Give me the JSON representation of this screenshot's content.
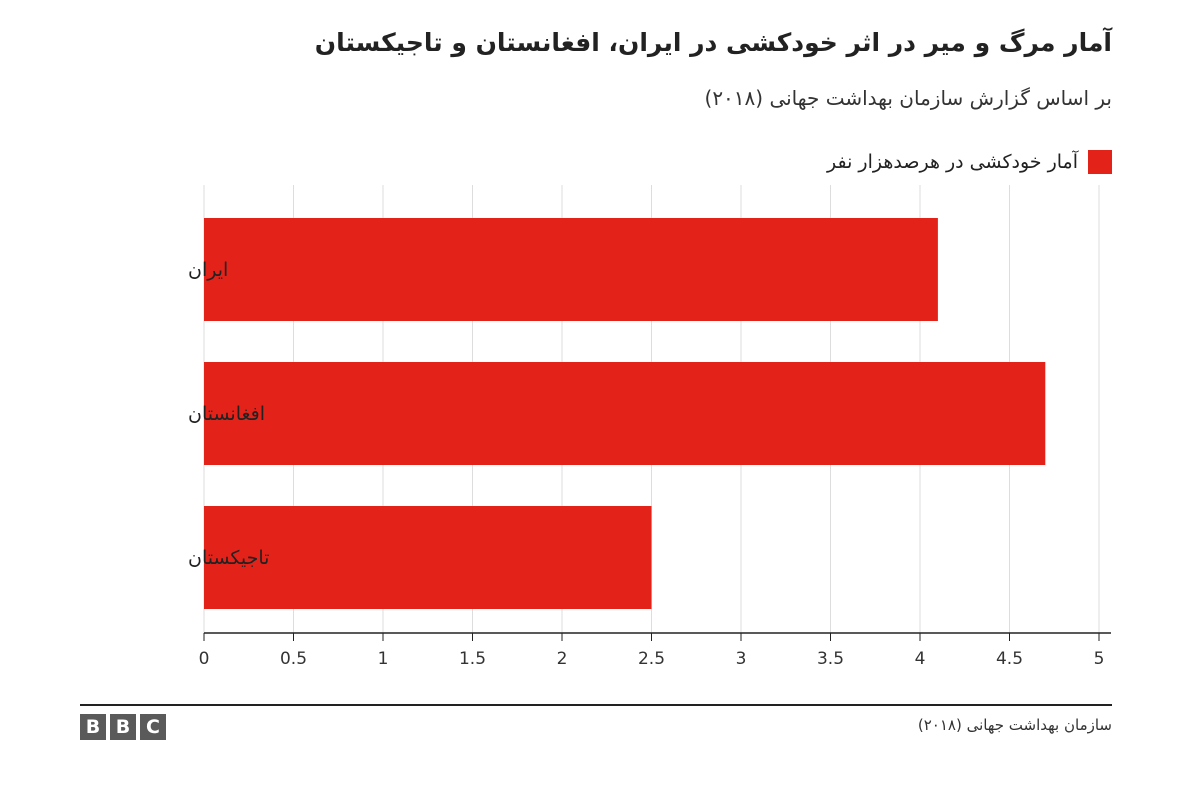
{
  "header": {
    "title": "آمار مرگ و میر در اثر خودکشی در ایران، افغانستان و تاجیکستان",
    "subtitle": "بر اساس گزارش سازمان بهداشت جهانی (۲۰۱۸)"
  },
  "footer": {
    "logo_letters": [
      "B",
      "B",
      "C"
    ],
    "source": "سازمان بهداشت جهانی (۲۰۱۸)"
  },
  "colors": {
    "bar": "#e3231a",
    "grid": "#dddddd",
    "axis": "#222222",
    "logo": "#5a5a5a"
  },
  "chart_data": {
    "type": "bar",
    "orientation": "horizontal",
    "categories": [
      "ایران",
      "افغانستان",
      "تاجیکستان"
    ],
    "series": [
      {
        "name": "آمار خودکشی در هرصدهزار نفر",
        "values": [
          4.1,
          4.7,
          2.5
        ]
      }
    ],
    "xlim": [
      0,
      5
    ],
    "x_ticks": [
      0,
      0.5,
      1,
      1.5,
      2,
      2.5,
      3,
      3.5,
      4,
      4.5,
      5
    ],
    "grid": true,
    "legend_position": "top-right"
  }
}
